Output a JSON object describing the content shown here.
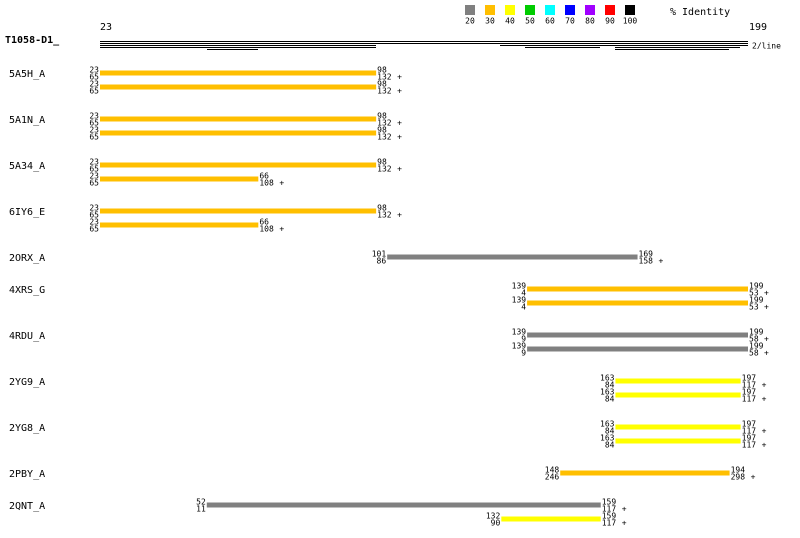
{
  "query": {
    "name": "T1058-D1_",
    "start": 23,
    "end": 199,
    "scale_note": "2/line"
  },
  "legend": {
    "title": "% Identity",
    "bins": [
      {
        "label": "20",
        "color": "#808080"
      },
      {
        "label": "30",
        "color": "#ffbf00"
      },
      {
        "label": "40",
        "color": "#ffff00"
      },
      {
        "label": "50",
        "color": "#00cc00"
      },
      {
        "label": "60",
        "color": "#00ffff"
      },
      {
        "label": "70",
        "color": "#0000ff"
      },
      {
        "label": "80",
        "color": "#a000ff"
      },
      {
        "label": "90",
        "color": "#ff0000"
      },
      {
        "label": "100",
        "color": "#000000"
      }
    ]
  },
  "hits": [
    {
      "name": "5A5H_A",
      "alignments": [
        {
          "qstart": 23,
          "qend": 98,
          "tstart": 65,
          "tend": 132,
          "strand": "+",
          "color": "#ffbf00"
        },
        {
          "qstart": 23,
          "qend": 98,
          "tstart": 65,
          "tend": 132,
          "strand": "+",
          "color": "#ffbf00"
        }
      ]
    },
    {
      "name": "5A1N_A",
      "alignments": [
        {
          "qstart": 23,
          "qend": 98,
          "tstart": 65,
          "tend": 132,
          "strand": "+",
          "color": "#ffbf00"
        },
        {
          "qstart": 23,
          "qend": 98,
          "tstart": 65,
          "tend": 132,
          "strand": "+",
          "color": "#ffbf00"
        }
      ]
    },
    {
      "name": "5A34_A",
      "alignments": [
        {
          "qstart": 23,
          "qend": 98,
          "tstart": 65,
          "tend": 132,
          "strand": "+",
          "color": "#ffbf00"
        },
        {
          "qstart": 23,
          "qend": 66,
          "tstart": 65,
          "tend": 108,
          "strand": "+",
          "color": "#ffbf00"
        }
      ]
    },
    {
      "name": "6IY6_E",
      "alignments": [
        {
          "qstart": 23,
          "qend": 98,
          "tstart": 65,
          "tend": 132,
          "strand": "+",
          "color": "#ffbf00"
        },
        {
          "qstart": 23,
          "qend": 66,
          "tstart": 65,
          "tend": 108,
          "strand": "+",
          "color": "#ffbf00"
        }
      ]
    },
    {
      "name": "2ORX_A",
      "alignments": [
        {
          "qstart": 101,
          "qend": 169,
          "tstart": 86,
          "tend": 158,
          "strand": "+",
          "color": "#808080"
        }
      ]
    },
    {
      "name": "4XRS_G",
      "alignments": [
        {
          "qstart": 139,
          "qend": 199,
          "tstart": 4,
          "tend": 53,
          "strand": "+",
          "color": "#ffbf00"
        },
        {
          "qstart": 139,
          "qend": 199,
          "tstart": 4,
          "tend": 53,
          "strand": "+",
          "color": "#ffbf00"
        }
      ]
    },
    {
      "name": "4RDU_A",
      "alignments": [
        {
          "qstart": 139,
          "qend": 199,
          "tstart": 9,
          "tend": 58,
          "strand": "+",
          "color": "#808080"
        },
        {
          "qstart": 139,
          "qend": 199,
          "tstart": 9,
          "tend": 58,
          "strand": "+",
          "color": "#808080"
        }
      ]
    },
    {
      "name": "2YG9_A",
      "alignments": [
        {
          "qstart": 163,
          "qend": 197,
          "tstart": 84,
          "tend": 117,
          "strand": "+",
          "color": "#ffff00"
        },
        {
          "qstart": 163,
          "qend": 197,
          "tstart": 84,
          "tend": 117,
          "strand": "+",
          "color": "#ffff00"
        }
      ]
    },
    {
      "name": "2YG8_A",
      "alignments": [
        {
          "qstart": 163,
          "qend": 197,
          "tstart": 84,
          "tend": 117,
          "strand": "+",
          "color": "#ffff00"
        },
        {
          "qstart": 163,
          "qend": 197,
          "tstart": 84,
          "tend": 117,
          "strand": "+",
          "color": "#ffff00"
        }
      ]
    },
    {
      "name": "2PBY_A",
      "alignments": [
        {
          "qstart": 148,
          "qend": 194,
          "tstart": 246,
          "tend": 298,
          "strand": "+",
          "color": "#ffbf00"
        }
      ]
    },
    {
      "name": "2QNT_A",
      "alignments": [
        {
          "qstart": 52,
          "qend": 159,
          "tstart": 11,
          "tend": 117,
          "strand": "+",
          "color": "#808080"
        },
        {
          "qstart": 132,
          "qend": 159,
          "tstart": 90,
          "tend": 117,
          "strand": "+",
          "color": "#ffff00"
        }
      ]
    }
  ]
}
